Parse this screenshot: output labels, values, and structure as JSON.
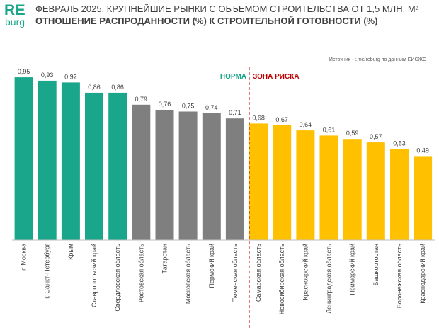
{
  "logo": {
    "top": "RE",
    "bottom": "burg"
  },
  "header": {
    "title_line1": "ФЕВРАЛЬ 2025. КРУПНЕЙШИЕ РЫНКИ С ОБЪЕМОМ СТРОИТЕЛЬСТВА ОТ 1,5 МЛН. М²",
    "title_line2": "ОТНОШЕНИЕ РАСПРОДАННОСТИ (%) К СТРОИТЕЛЬНОЙ ГОТОВНОСТИ (%)"
  },
  "source": "Источник - t.me/reburg по данным ЕИСЖС",
  "zones": {
    "norm": "НОРМА",
    "risk": "ЗОНА РИСКА"
  },
  "colors": {
    "brand": "#1aa68a",
    "green": "#1aa68a",
    "gray": "#7f7f7f",
    "yellow": "#ffc000",
    "risk_red": "#c00000",
    "axis": "#bfbfbf"
  },
  "chart_data": {
    "type": "bar",
    "categories": [
      "г. Москва",
      "г. Санкт-Петербург",
      "Крым",
      "Ставропольский край",
      "Свердловская область",
      "Ростовская область",
      "Татарстан",
      "Московская область",
      "Пермский край",
      "Тюменская область",
      "Самарская область",
      "Новосибирская область",
      "Красноярский край",
      "Ленинградская область",
      "Приморский край",
      "Башкортостан",
      "Воронежская область",
      "Краснодарский край"
    ],
    "values": [
      0.95,
      0.93,
      0.92,
      0.86,
      0.86,
      0.79,
      0.76,
      0.75,
      0.74,
      0.71,
      0.68,
      0.67,
      0.64,
      0.61,
      0.59,
      0.57,
      0.53,
      0.49
    ],
    "value_labels": [
      "0,95",
      "0,93",
      "0,92",
      "0,86",
      "0,86",
      "0,79",
      "0,76",
      "0,75",
      "0,74",
      "0,71",
      "0,68",
      "0,67",
      "0,64",
      "0,61",
      "0,59",
      "0,57",
      "0,53",
      "0,49"
    ],
    "bar_colors": [
      "green",
      "green",
      "green",
      "green",
      "green",
      "gray",
      "gray",
      "gray",
      "gray",
      "gray",
      "yellow",
      "yellow",
      "yellow",
      "yellow",
      "yellow",
      "yellow",
      "yellow",
      "yellow"
    ],
    "ylim": [
      0,
      1
    ],
    "grid": false,
    "xlabel": "",
    "ylabel": ""
  }
}
